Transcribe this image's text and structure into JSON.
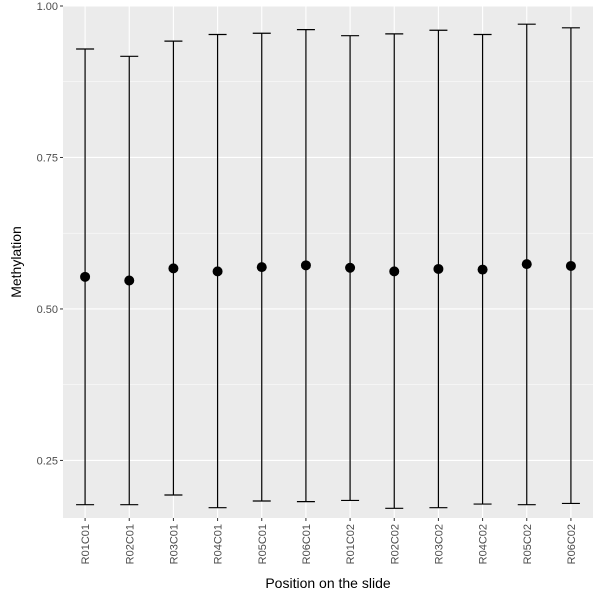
{
  "chart_data": {
    "type": "errorbar",
    "xlabel": "Position on the slide",
    "ylabel": "Methylation",
    "categories": [
      "R01C01",
      "R02C01",
      "R03C01",
      "R04C01",
      "R05C01",
      "R06C01",
      "R01C02",
      "R02C02",
      "R03C02",
      "R04C02",
      "R05C02",
      "R06C02"
    ],
    "values": [
      0.553,
      0.547,
      0.567,
      0.562,
      0.569,
      0.572,
      0.568,
      0.562,
      0.566,
      0.565,
      0.574,
      0.571
    ],
    "lower": [
      0.177,
      0.177,
      0.193,
      0.172,
      0.183,
      0.182,
      0.184,
      0.171,
      0.172,
      0.178,
      0.177,
      0.179
    ],
    "upper": [
      0.929,
      0.917,
      0.942,
      0.953,
      0.955,
      0.961,
      0.951,
      0.954,
      0.96,
      0.953,
      0.97,
      0.964
    ],
    "ylim": [
      0.155,
      1.0
    ],
    "yticks": [
      0.25,
      0.5,
      0.75,
      1.0
    ],
    "ytick_labels": [
      "0.25",
      "0.50",
      "0.75",
      "1.00"
    ],
    "grid": true,
    "colors": {
      "panel": "#ebebeb",
      "grid": "#ffffff",
      "marks": "#000000"
    }
  }
}
